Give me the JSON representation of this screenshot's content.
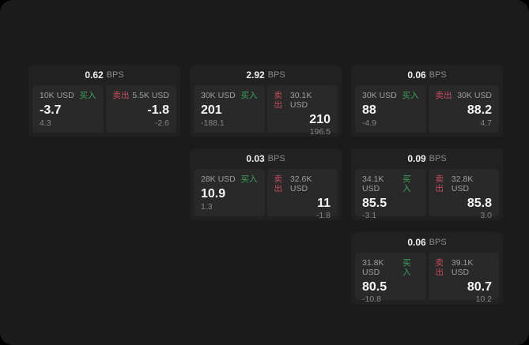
{
  "labels": {
    "bps_unit": "BPS",
    "buy": "买入",
    "sell": "卖出"
  },
  "colors": {
    "outer_background": "#000000",
    "panel_background": "#1b1b1b",
    "card_background": "#212121",
    "tile_background": "#292929",
    "buy_accent": "#3da25c",
    "sell_accent": "#c44d5e",
    "value_text": "#f5f5f5",
    "muted_text": "#8a8a8a"
  },
  "cards": [
    {
      "bps": "0.62",
      "buy": {
        "size": "10K USD",
        "price": "-3.7",
        "delta": "4.3"
      },
      "sell": {
        "size": "5.5K USD",
        "price": "-1.8",
        "delta": "-2.6"
      }
    },
    {
      "bps": "2.92",
      "buy": {
        "size": "30K USD",
        "price": "201",
        "delta": "-188.1"
      },
      "sell": {
        "size": "30.1K USD",
        "price": "210",
        "delta": "196.5"
      }
    },
    {
      "bps": "0.06",
      "buy": {
        "size": "30K USD",
        "price": "88",
        "delta": "-4.9"
      },
      "sell": {
        "size": "30K USD",
        "price": "88.2",
        "delta": "4.7"
      }
    },
    {
      "bps": "0.03",
      "buy": {
        "size": "28K USD",
        "price": "10.9",
        "delta": "1.3"
      },
      "sell": {
        "size": "32.6K USD",
        "price": "11",
        "delta": "-1.8"
      }
    },
    {
      "bps": "0.09",
      "buy": {
        "size": "34.1K USD",
        "price": "85.5",
        "delta": "-3.1"
      },
      "sell": {
        "size": "32.8K USD",
        "price": "85.8",
        "delta": "3.0"
      }
    },
    {
      "bps": "0.06",
      "buy": {
        "size": "31.8K USD",
        "price": "80.5",
        "delta": "-10.8"
      },
      "sell": {
        "size": "39.1K USD",
        "price": "80.7",
        "delta": "10.2"
      }
    }
  ]
}
